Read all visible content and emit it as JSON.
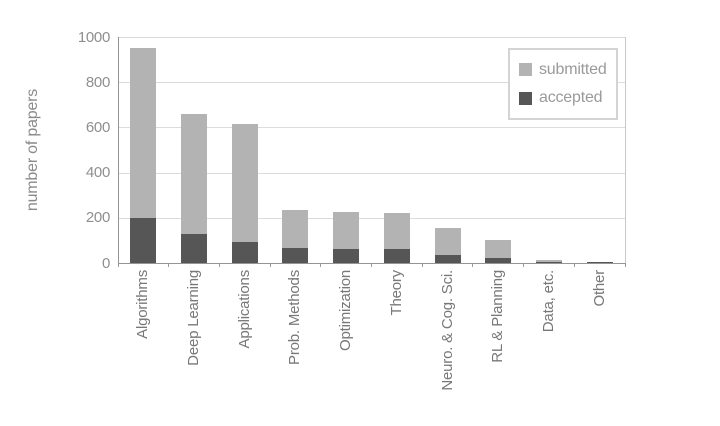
{
  "chart_data": {
    "type": "bar",
    "subtype": "overlay-stacked",
    "title": "",
    "xlabel": "",
    "ylabel": "number of papers",
    "ylim": [
      0,
      1000
    ],
    "yticks": [
      0,
      200,
      400,
      600,
      800,
      1000
    ],
    "grid": true,
    "legend_position": "top-right",
    "categories": [
      "Algorithms",
      "Deep Learning",
      "Applications",
      "Prob. Methods",
      "Optimization",
      "Theory",
      "Neuro. & Cog. Sci.",
      "RL & Planning",
      "Data, etc.",
      "Other"
    ],
    "series": [
      {
        "name": "submitted",
        "color": "#b3b3b3",
        "values": [
          950,
          660,
          615,
          235,
          225,
          220,
          155,
          100,
          12,
          6
        ]
      },
      {
        "name": "accepted",
        "color": "#565656",
        "values": [
          200,
          130,
          95,
          65,
          60,
          60,
          35,
          20,
          3,
          2
        ]
      }
    ]
  },
  "colors": {
    "gridline": "#dcdcdc",
    "axis": "#959595",
    "plot_border": "#c8c8c8",
    "tick_text": "#8f8f8f",
    "category_text": "#787878",
    "legend_text": "#9a9a9a",
    "background": "#ffffff"
  }
}
